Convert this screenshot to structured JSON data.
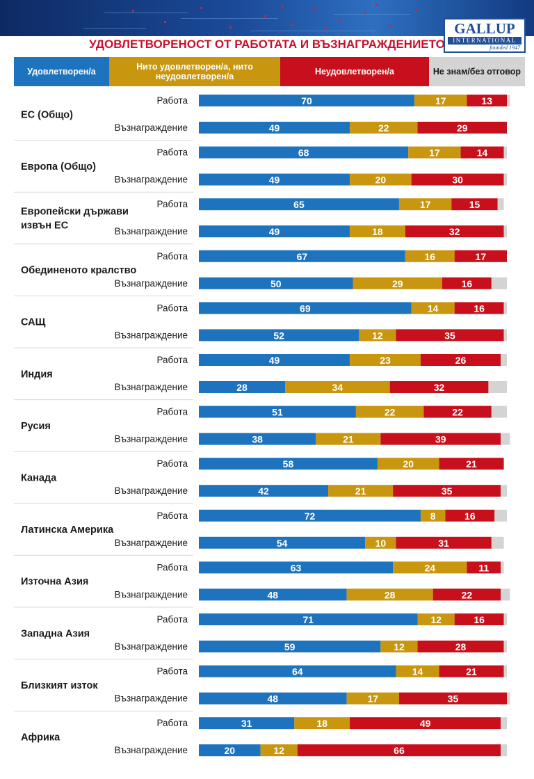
{
  "header": {
    "title": "УДОВЛЕТВОРЕНОСТ ОТ РАБОТАТА И ВЪЗНАГРАЖДЕНИЕТО",
    "logo": {
      "name": "GALLUP",
      "sub": "INTERNATIONAL",
      "founded": "founded 1947"
    }
  },
  "colors": {
    "satisfied": "#1e73be",
    "neutral": "#c8960f",
    "dissatisfied": "#c8101c",
    "dont_know": "#d4d4d4",
    "label": "#1a1a1a",
    "divider": "#d9d9d9"
  },
  "legend": [
    {
      "label": "Удовлетворен/а",
      "color": "#1e73be"
    },
    {
      "label": "Нито удовлетворен/а, нито неудовлетворен/а",
      "color": "#c8960f"
    },
    {
      "label": "Неудовлетворен/а",
      "color": "#c8101c"
    },
    {
      "label": "Не знам/без отговор",
      "color": "#d4d4d4",
      "text_color": "#1a1a1a"
    }
  ],
  "chart_data": {
    "type": "bar",
    "orientation": "horizontal",
    "stacked": true,
    "title": "УДОВЛЕТВОРЕНОСТ ОТ РАБОТАТА И ВЪЗНАГРАЖДЕНИЕТО",
    "series_names": [
      "Удовлетворен/а",
      "Нито удовлетворен/а, нито неудовлетворен/а",
      "Неудовлетворен/а",
      "Не знам/без отговор"
    ],
    "row_labels": [
      "Работа",
      "Възнаграждение"
    ],
    "xlim": [
      0,
      100
    ],
    "groups": [
      {
        "name": [
          "ЕС (Общо)"
        ],
        "rows": [
          [
            70,
            17,
            13,
            1
          ],
          [
            49,
            22,
            29,
            0
          ]
        ]
      },
      {
        "name": [
          "Европа (Общо)"
        ],
        "rows": [
          [
            68,
            17,
            14,
            1
          ],
          [
            49,
            20,
            30,
            1
          ]
        ]
      },
      {
        "name": [
          "Европейски държави",
          "извън ЕС"
        ],
        "rows": [
          [
            65,
            17,
            15,
            2
          ],
          [
            49,
            18,
            32,
            1
          ]
        ]
      },
      {
        "name": [
          "Обединеното кралство"
        ],
        "rows": [
          [
            67,
            16,
            17,
            0
          ],
          [
            50,
            29,
            16,
            5
          ]
        ]
      },
      {
        "name": [
          "САЩ"
        ],
        "rows": [
          [
            69,
            14,
            16,
            1
          ],
          [
            52,
            12,
            35,
            1
          ]
        ]
      },
      {
        "name": [
          "Индия"
        ],
        "rows": [
          [
            49,
            23,
            26,
            2
          ],
          [
            28,
            34,
            32,
            6
          ]
        ]
      },
      {
        "name": [
          "Русия"
        ],
        "rows": [
          [
            51,
            22,
            22,
            5
          ],
          [
            38,
            21,
            39,
            3
          ]
        ]
      },
      {
        "name": [
          "Канада"
        ],
        "rows": [
          [
            58,
            20,
            21,
            0
          ],
          [
            42,
            21,
            35,
            2
          ]
        ]
      },
      {
        "name": [
          "Латинска Америка"
        ],
        "rows": [
          [
            72,
            8,
            16,
            4
          ],
          [
            54,
            10,
            31,
            4
          ]
        ]
      },
      {
        "name": [
          "Източна Азия"
        ],
        "rows": [
          [
            63,
            24,
            11,
            1
          ],
          [
            48,
            28,
            22,
            3
          ]
        ]
      },
      {
        "name": [
          "Западна Азия"
        ],
        "rows": [
          [
            71,
            12,
            16,
            1
          ],
          [
            59,
            12,
            28,
            1
          ]
        ]
      },
      {
        "name": [
          "Близкият изток"
        ],
        "rows": [
          [
            64,
            14,
            21,
            1
          ],
          [
            48,
            17,
            35,
            1
          ]
        ]
      },
      {
        "name": [
          "Африка"
        ],
        "rows": [
          [
            31,
            18,
            49,
            2
          ],
          [
            20,
            12,
            66,
            2
          ]
        ]
      }
    ]
  }
}
